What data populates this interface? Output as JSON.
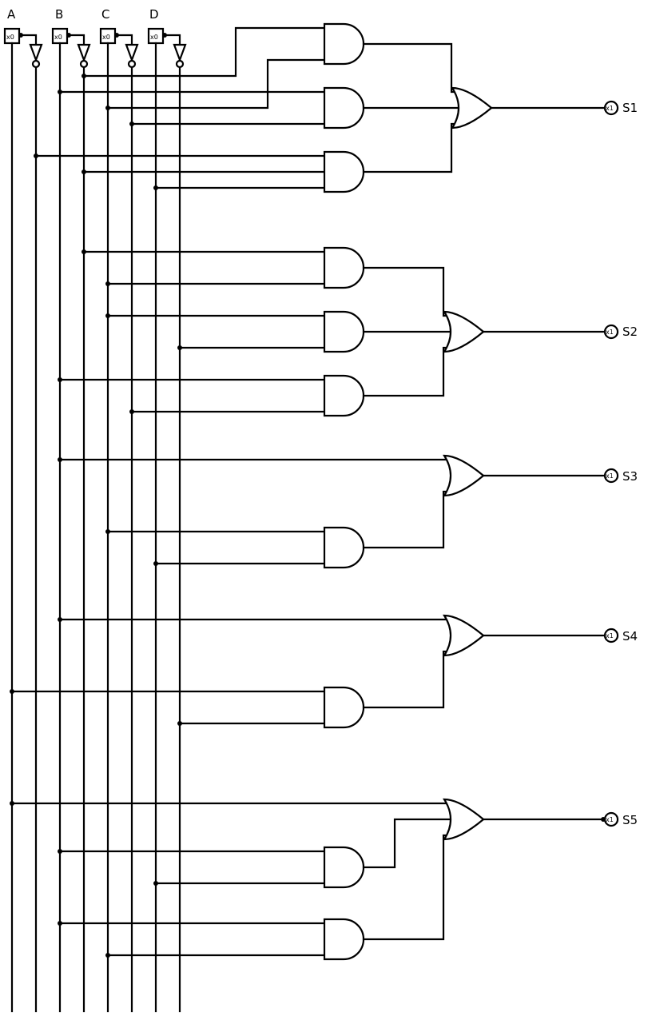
{
  "inputs": [
    {
      "id": "A",
      "label": "A",
      "pin_text": "x0"
    },
    {
      "id": "B",
      "label": "B",
      "pin_text": "x0"
    },
    {
      "id": "C",
      "label": "C",
      "pin_text": "x0"
    },
    {
      "id": "D",
      "label": "D",
      "pin_text": "x0"
    }
  ],
  "outputs": [
    {
      "id": "S1",
      "label": "S1",
      "pin_text": "x1"
    },
    {
      "id": "S2",
      "label": "S2",
      "pin_text": "x1"
    },
    {
      "id": "S3",
      "label": "S3",
      "pin_text": "x1"
    },
    {
      "id": "S4",
      "label": "S4",
      "pin_text": "x1"
    },
    {
      "id": "S5",
      "label": "S5",
      "pin_text": "x1"
    }
  ]
}
